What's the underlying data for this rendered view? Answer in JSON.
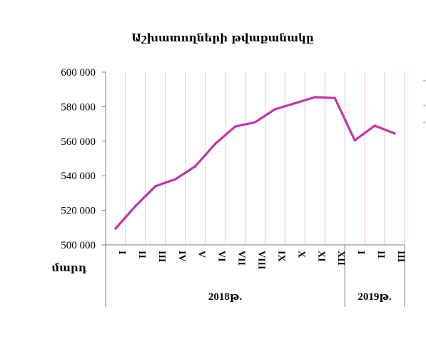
{
  "chart_data": {
    "type": "line",
    "title": "Աշխատողների թվաքանակը",
    "ylabel": "մարդ",
    "ylim": [
      500000,
      600000
    ],
    "y_ticks": [
      500000,
      520000,
      540000,
      560000,
      580000,
      600000
    ],
    "y_tick_labels": [
      "500 000",
      "520 000",
      "540 000",
      "560 000",
      "580 000",
      "600 000"
    ],
    "categories": [
      "I",
      "II",
      "III",
      "IV",
      "V",
      "VI",
      "VII",
      "VIII",
      "IX",
      "X",
      "XI",
      "XII",
      "I",
      "II",
      "III"
    ],
    "groups": [
      {
        "label": "2018թ.",
        "count": 12
      },
      {
        "label": "2019թ.",
        "count": 3
      }
    ],
    "series": [
      {
        "color": "#c433a8",
        "values": [
          509500,
          522500,
          534000,
          538000,
          545500,
          558500,
          568500,
          571000,
          578500,
          582000,
          585500,
          585000,
          560500,
          569000,
          564500
        ]
      }
    ],
    "grid": "vertical-lines",
    "gridline_color": "#e8b4c4"
  }
}
